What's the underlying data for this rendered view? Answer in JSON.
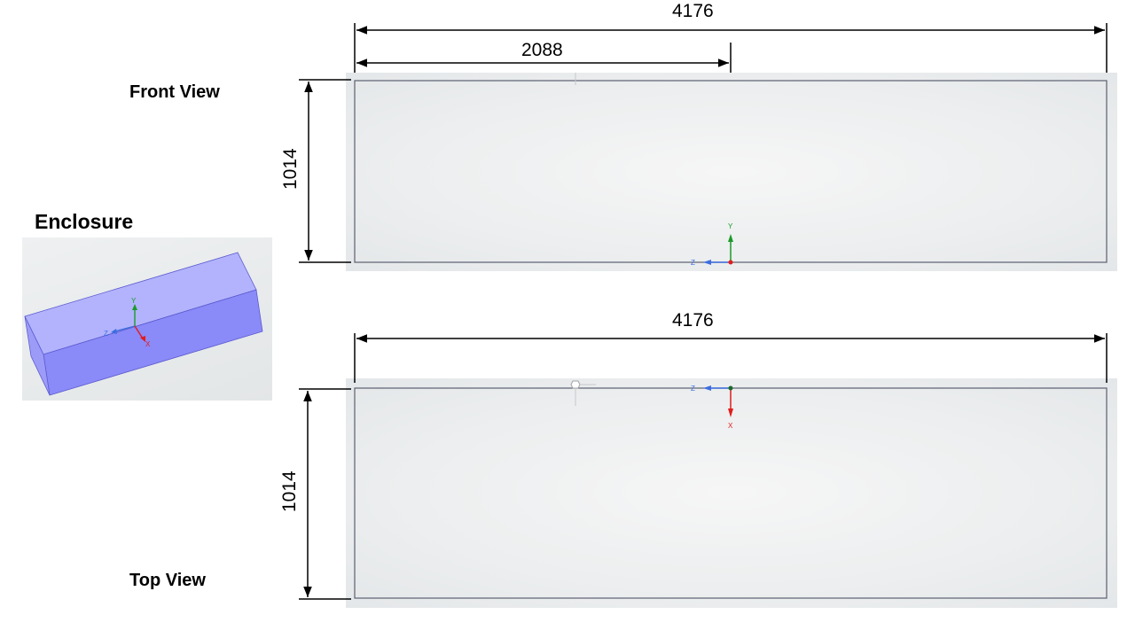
{
  "iso": {
    "title": "Enclosure"
  },
  "front": {
    "label": "Front View",
    "width_dim": "4176",
    "half_dim": "2088",
    "height_dim": "1014"
  },
  "top": {
    "label": "Top View",
    "width_dim": "4176",
    "height_dim": "1014"
  },
  "axes": {
    "x": "X",
    "y": "Y",
    "z": "Z"
  },
  "colors": {
    "box_top": "#b3b3fd",
    "box_front": "#8a8af8",
    "box_side": "#9c9cf8",
    "axis_x": "#e11c1c",
    "axis_y": "#1a9a2a",
    "axis_z": "#3d6de0",
    "outline": "#5a6070"
  }
}
